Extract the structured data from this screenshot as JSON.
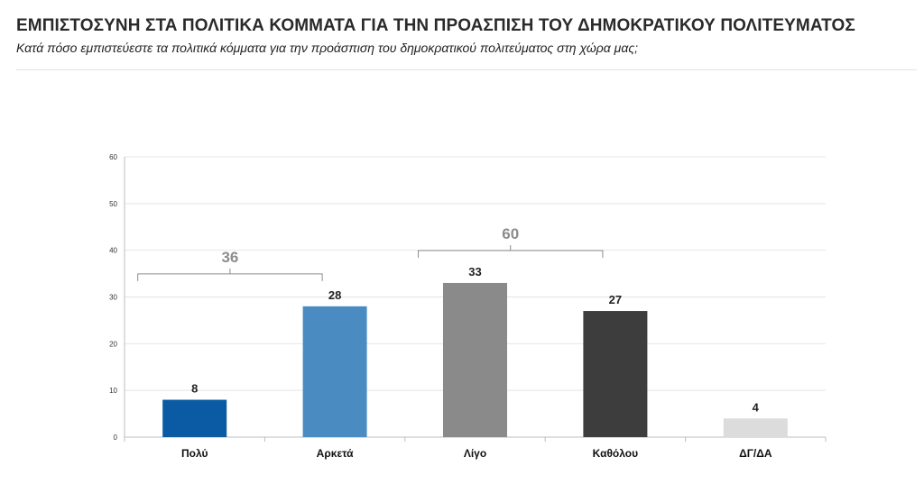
{
  "header": {
    "title": "ΕΜΠΙΣΤΟΣΥΝΗ ΣΤΑ ΠΟΛΙΤΙΚΑ ΚΟΜΜΑΤΑ ΓΙΑ ΤΗΝ ΠΡΟΑΣΠΙΣΗ ΤΟΥ ΔΗΜΟΚΡΑΤΙΚΟΥ ΠΟΛΙΤΕΥΜΑΤΟΣ",
    "subtitle": "Κατά πόσο εμπιστεύεστε τα πολιτικά κόμματα για την προάσπιση του δημοκρατικού πολιτεύματος στη χώρα μας;"
  },
  "chart_data": {
    "type": "bar",
    "categories": [
      "Πολύ",
      "Αρκετά",
      "Λίγο",
      "Καθόλου",
      "ΔΓ/ΔΑ"
    ],
    "values": [
      8,
      28,
      33,
      27,
      4
    ],
    "data_labels": [
      "8",
      "28",
      "33",
      "27",
      "4"
    ],
    "bar_colors": [
      "#0a5aa4",
      "#4a8cc2",
      "#8a8a8a",
      "#3d3d3d",
      "#dcdcdc"
    ],
    "ylim": [
      0,
      60
    ],
    "yticks": [
      0,
      10,
      20,
      30,
      40,
      50,
      60
    ],
    "grid": true,
    "legend": "none",
    "groups": [
      {
        "label": "36",
        "categories": [
          "Πολύ",
          "Αρκετά"
        ],
        "value": 36
      },
      {
        "label": "60",
        "categories": [
          "Λίγο",
          "Καθόλου"
        ],
        "value": 60
      }
    ],
    "colors": {
      "grid": "#e4e4e4",
      "axis": "#bdbdbd",
      "tick_label": "#333333",
      "data_label": "#222222",
      "category_label": "#111111",
      "group_label": "#8c8c8c",
      "bracket": "#8c8c8c"
    }
  }
}
